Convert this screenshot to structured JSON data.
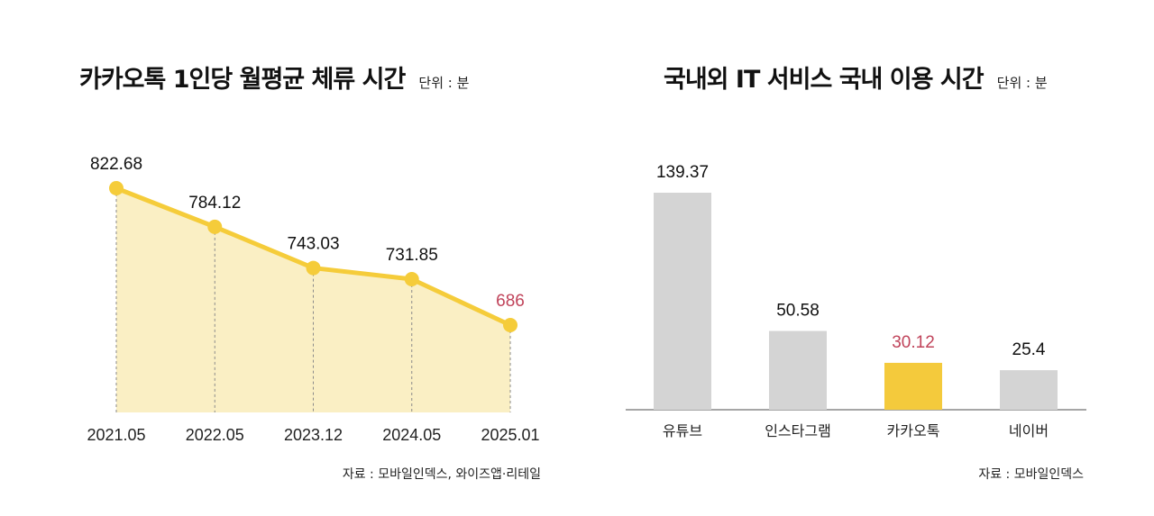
{
  "chart_data": [
    {
      "type": "area",
      "title": "카카오톡 1인당 월평균 체류 시간",
      "unit": "단위 : 분",
      "categories": [
        "2021.05",
        "2022.05",
        "2023.12",
        "2024.05",
        "2025.01"
      ],
      "values": [
        822.68,
        784.12,
        743.03,
        731.85,
        686
      ],
      "value_labels": [
        "822.68",
        "784.12",
        "743.03",
        "731.85",
        "686"
      ],
      "highlight_index": 4,
      "ylim": [
        610,
        850
      ],
      "grid": false,
      "source": "자료 : 모바일인덱스, 와이즈앱·리테일",
      "colors": {
        "line": "#f5cc3a",
        "fill": "#faefc4",
        "drop": "#8a8a8a",
        "highlight_label": "#c0435a",
        "label": "#111111"
      }
    },
    {
      "type": "bar",
      "title": "국내외 IT 서비스 국내 이용 시간",
      "unit": "단위 : 분",
      "categories": [
        "유튜브",
        "인스타그램",
        "카카오톡",
        "네이버"
      ],
      "values": [
        139.37,
        50.58,
        30.12,
        25.4
      ],
      "value_labels": [
        "139.37",
        "50.58",
        "30.12",
        "25.4"
      ],
      "highlight_index": 2,
      "ylim": [
        0,
        139.37
      ],
      "grid": false,
      "source": "자료 : 모바일인덱스",
      "colors": {
        "bar": "#d4d4d4",
        "highlight_bar": "#f4ca3c",
        "highlight_label": "#c0435a",
        "label": "#111111",
        "baseline": "#888888"
      }
    }
  ]
}
